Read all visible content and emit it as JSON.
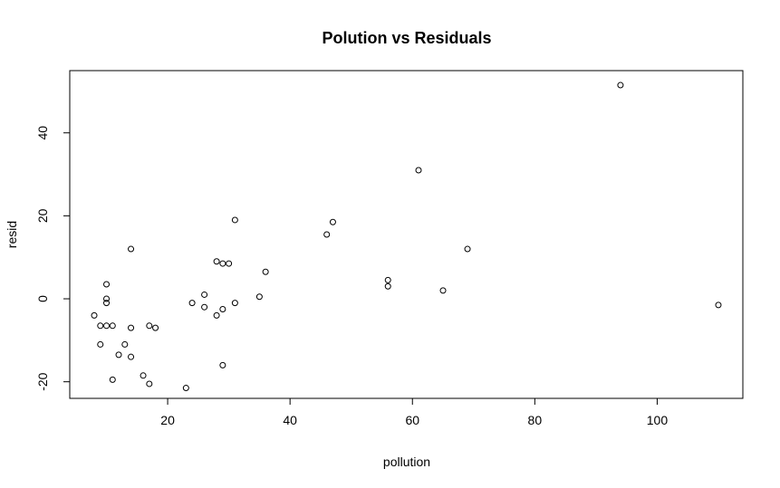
{
  "chart_data": {
    "type": "scatter",
    "title": "Polution vs Residuals",
    "xlabel": "pollution",
    "ylabel": "resid",
    "xlim": [
      4,
      114
    ],
    "ylim": [
      -24,
      55
    ],
    "xticks": [
      20,
      40,
      60,
      80,
      100
    ],
    "xtick_labels": [
      "20",
      "40",
      "60",
      "80",
      "100"
    ],
    "yticks": [
      -20,
      0,
      20,
      40
    ],
    "ytick_labels": [
      "-20",
      "0",
      "20",
      "40"
    ],
    "grid": false,
    "marker": "open-circle",
    "points": [
      {
        "x": 8,
        "y": -4
      },
      {
        "x": 9,
        "y": -6.5
      },
      {
        "x": 9,
        "y": -11
      },
      {
        "x": 10,
        "y": -6.5
      },
      {
        "x": 10,
        "y": -1
      },
      {
        "x": 10,
        "y": 0
      },
      {
        "x": 10,
        "y": 3.5
      },
      {
        "x": 11,
        "y": -6.5
      },
      {
        "x": 11,
        "y": -19.5
      },
      {
        "x": 12,
        "y": -13.5
      },
      {
        "x": 13,
        "y": -11
      },
      {
        "x": 14,
        "y": -7
      },
      {
        "x": 14,
        "y": -14
      },
      {
        "x": 14,
        "y": 12
      },
      {
        "x": 16,
        "y": -18.5
      },
      {
        "x": 17,
        "y": -20.5
      },
      {
        "x": 17,
        "y": -6.5
      },
      {
        "x": 18,
        "y": -7
      },
      {
        "x": 23,
        "y": -21.5
      },
      {
        "x": 24,
        "y": -1
      },
      {
        "x": 26,
        "y": 1
      },
      {
        "x": 26,
        "y": -2
      },
      {
        "x": 28,
        "y": -4
      },
      {
        "x": 28,
        "y": 9
      },
      {
        "x": 29,
        "y": 8.5
      },
      {
        "x": 29,
        "y": -2.5
      },
      {
        "x": 29,
        "y": -16
      },
      {
        "x": 30,
        "y": 8.5
      },
      {
        "x": 31,
        "y": -1
      },
      {
        "x": 31,
        "y": 19
      },
      {
        "x": 35,
        "y": 0.5
      },
      {
        "x": 36,
        "y": 6.5
      },
      {
        "x": 46,
        "y": 15.5
      },
      {
        "x": 47,
        "y": 18.5
      },
      {
        "x": 56,
        "y": 4.5
      },
      {
        "x": 56,
        "y": 3
      },
      {
        "x": 61,
        "y": 31
      },
      {
        "x": 65,
        "y": 2
      },
      {
        "x": 69,
        "y": 12
      },
      {
        "x": 94,
        "y": 51.5
      },
      {
        "x": 110,
        "y": -1.5
      }
    ]
  }
}
